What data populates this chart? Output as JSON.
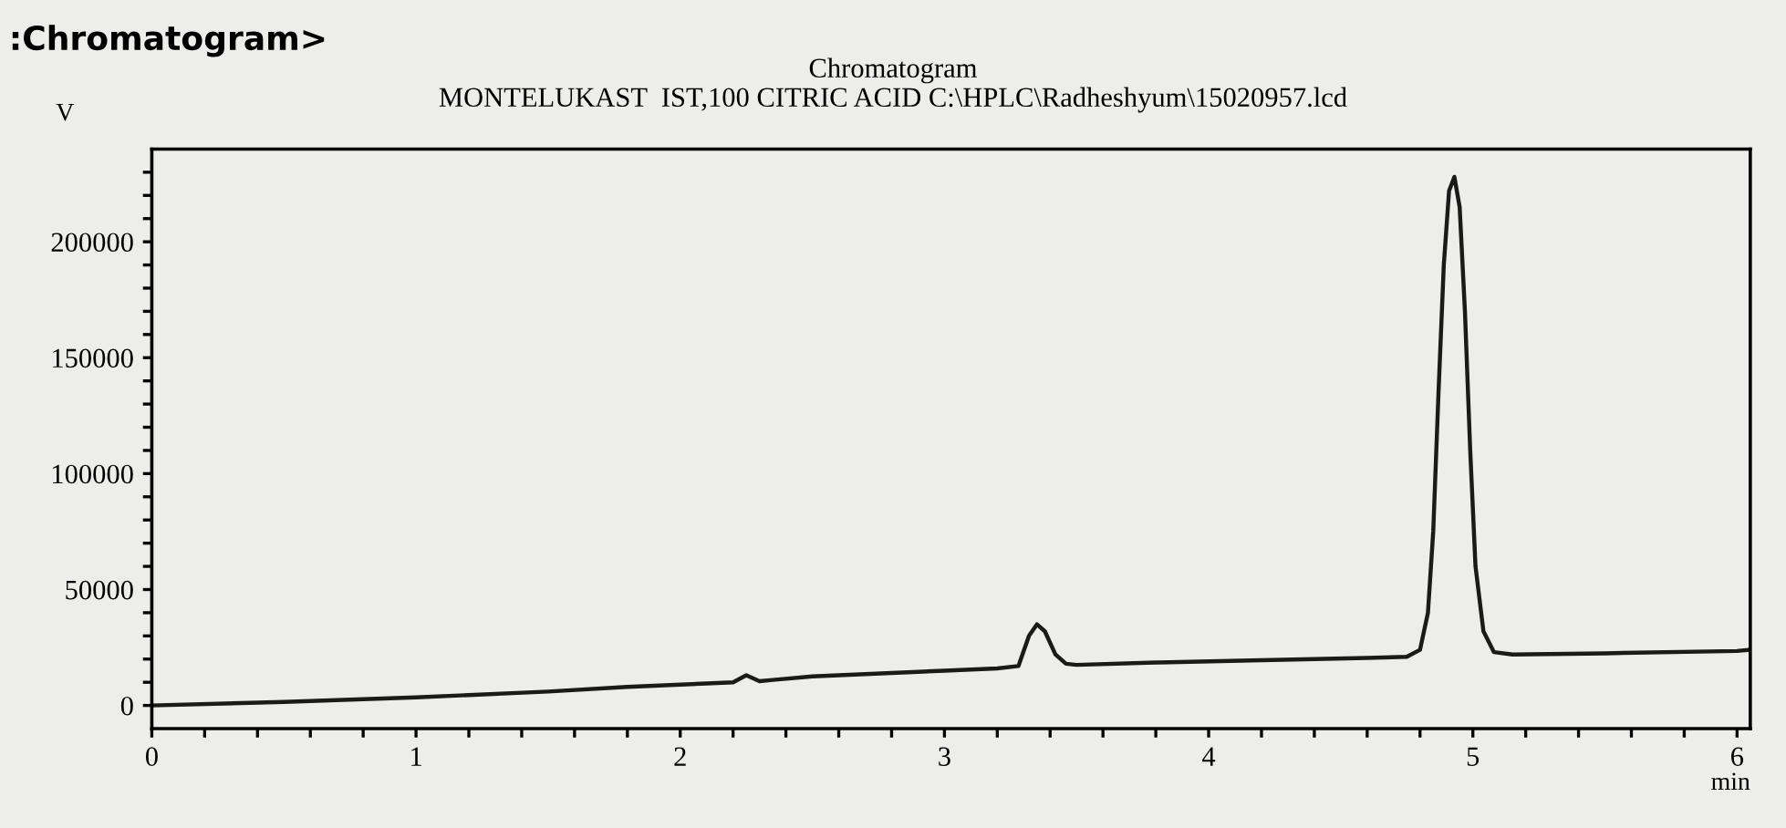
{
  "chart_data": {
    "type": "line",
    "title": ":Chromatogram>",
    "subtitle": "Chromatogram\nMONTELUKAST  IST,100 CITRIC ACID C:\\HPLC\\Radheshyum\\15020957.lcd",
    "ylabel": "V",
    "xlabel": "min",
    "x": [
      0,
      0.5,
      1,
      1.5,
      1.8,
      2.1,
      2.2,
      2.25,
      2.3,
      2.35,
      2.5,
      2.8,
      3.0,
      3.2,
      3.28,
      3.32,
      3.35,
      3.38,
      3.42,
      3.46,
      3.5,
      3.8,
      4.2,
      4.6,
      4.75,
      4.8,
      4.83,
      4.85,
      4.87,
      4.89,
      4.91,
      4.93,
      4.95,
      4.97,
      4.99,
      5.01,
      5.04,
      5.08,
      5.15,
      5.5,
      6.0,
      6.05
    ],
    "series": [
      {
        "color": "#1a1a1a",
        "values": [
          0,
          1500,
          3500,
          6000,
          8000,
          9500,
          10000,
          13000,
          10500,
          11000,
          12500,
          14000,
          15000,
          16000,
          17000,
          30000,
          35000,
          32000,
          22000,
          18000,
          17500,
          18500,
          19500,
          20500,
          21000,
          24000,
          40000,
          75000,
          135000,
          190000,
          222000,
          228000,
          215000,
          170000,
          110000,
          60000,
          32000,
          23000,
          22000,
          22500,
          23500,
          24000
        ]
      }
    ],
    "xlim": [
      0,
      6.05
    ],
    "ylim": [
      -10000,
      240000
    ],
    "xticks": [
      0,
      {
        "value": 0.2,
        "label": null
      },
      {
        "value": 0.4,
        "label": null
      },
      {
        "value": 0.6,
        "label": null
      },
      {
        "value": 0.8,
        "label": null
      },
      1,
      {
        "value": 1.2,
        "label": null
      },
      {
        "value": 1.4,
        "label": null
      },
      {
        "value": 1.6,
        "label": null
      },
      {
        "value": 1.8,
        "label": null
      },
      2,
      {
        "value": 2.2,
        "label": null
      },
      {
        "value": 2.4,
        "label": null
      },
      {
        "value": 2.6,
        "label": null
      },
      {
        "value": 2.8,
        "label": null
      },
      3,
      {
        "value": 3.2,
        "label": null
      },
      {
        "value": 3.4,
        "label": null
      },
      {
        "value": 3.6,
        "label": null
      },
      {
        "value": 3.8,
        "label": null
      },
      4,
      {
        "value": 4.2,
        "label": null
      },
      {
        "value": 4.4,
        "label": null
      },
      {
        "value": 4.6,
        "label": null
      },
      {
        "value": 4.8,
        "label": null
      },
      5,
      {
        "value": 5.2,
        "label": null
      },
      {
        "value": 5.4,
        "label": null
      },
      {
        "value": 5.6,
        "label": null
      },
      {
        "value": 5.8,
        "label": null
      },
      6
    ],
    "yticks": [
      0,
      {
        "value": 10000,
        "label": null
      },
      {
        "value": 20000,
        "label": null
      },
      {
        "value": 30000,
        "label": null
      },
      {
        "value": 40000,
        "label": null
      },
      50000,
      {
        "value": 60000,
        "label": null
      },
      {
        "value": 70000,
        "label": null
      },
      {
        "value": 80000,
        "label": null
      },
      {
        "value": 90000,
        "label": null
      },
      100000,
      {
        "value": 110000,
        "label": null
      },
      {
        "value": 120000,
        "label": null
      },
      {
        "value": 130000,
        "label": null
      },
      {
        "value": 140000,
        "label": null
      },
      150000,
      {
        "value": 160000,
        "label": null
      },
      {
        "value": 170000,
        "label": null
      },
      {
        "value": 180000,
        "label": null
      },
      {
        "value": 190000,
        "label": null
      },
      200000,
      {
        "value": 210000,
        "label": null
      },
      {
        "value": 220000,
        "label": null
      },
      {
        "value": 230000,
        "label": null
      }
    ],
    "grid": false,
    "legend": false,
    "marker": "none",
    "line_style": "solid"
  }
}
